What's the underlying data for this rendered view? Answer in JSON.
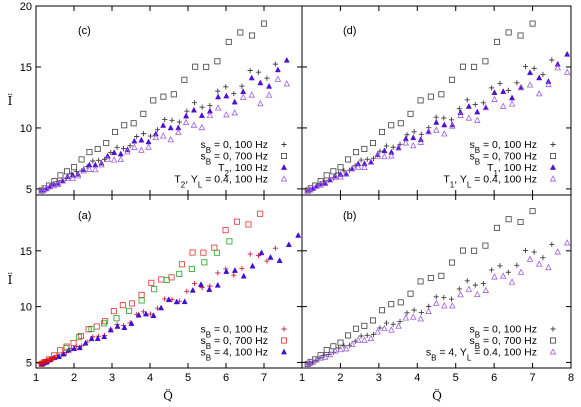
{
  "figure": {
    "x_axis_label": "Q̈",
    "y_axis_label": "Ï",
    "x_ticks": [
      1,
      2,
      3,
      4,
      5,
      6,
      7,
      8
    ]
  },
  "chart_data": [
    {
      "panel": "c",
      "type": "scatter",
      "xlim": [
        1,
        8
      ],
      "ylim": [
        4.5,
        20
      ],
      "y_ticks": [
        5,
        10,
        15,
        20
      ],
      "legend_placement": "bottom-right",
      "series": [
        {
          "name": "s_B = 0, 100 Hz",
          "marker": "plus",
          "color": "#404040",
          "slope": 1.68,
          "x_max": 7.3
        },
        {
          "name": "s_B = 0, 700 Hz",
          "marker": "square",
          "color": "#404040",
          "slope": 2.4,
          "x_max": 7.0
        },
        {
          "name": "T_2, 100 Hz",
          "marker": "triangle-filled",
          "color": "#5010d0",
          "slope": 1.55,
          "x_max": 7.6
        },
        {
          "name": "T_2, Y_L = 0.4, 100 Hz",
          "marker": "triangle-open",
          "color": "#a060e0",
          "slope": 1.35,
          "x_max": 7.6
        }
      ]
    },
    {
      "panel": "d",
      "type": "scatter",
      "xlim": [
        1,
        8
      ],
      "ylim": [
        4.5,
        20
      ],
      "y_ticks": [
        5,
        10,
        15,
        20
      ],
      "legend_placement": "bottom-right",
      "series": [
        {
          "name": "s_B = 0, 100 Hz",
          "marker": "plus",
          "color": "#404040",
          "slope": 1.68,
          "x_max": 7.5
        },
        {
          "name": "s_B = 0, 700 Hz",
          "marker": "square",
          "color": "#404040",
          "slope": 2.4,
          "x_max": 7.0
        },
        {
          "name": "T_1, 100 Hz",
          "marker": "triangle-filled",
          "color": "#5010d0",
          "slope": 1.55,
          "x_max": 7.9
        },
        {
          "name": "T_1, Y_L = 0.4, 100 Hz",
          "marker": "triangle-open",
          "color": "#a060e0",
          "slope": 1.43,
          "x_max": 7.9
        }
      ]
    },
    {
      "panel": "a",
      "type": "scatter",
      "xlim": [
        1,
        8
      ],
      "ylim": [
        4.5,
        20
      ],
      "y_ticks": [
        5,
        10,
        15
      ],
      "legend_placement": "bottom-right",
      "series": [
        {
          "name": "s_B = 0, 100 Hz",
          "marker": "plus",
          "color": "#d02040",
          "slope": 1.68,
          "x_max": 7.3
        },
        {
          "name": "s_B = 0, 700 Hz",
          "marker": "square",
          "color": "#e03030",
          "slope": 2.4,
          "x_max": 6.9
        },
        {
          "name": "s_B = 4, 100 Hz",
          "marker": "triangle-filled",
          "color": "#4010d0",
          "slope": 1.6,
          "x_max": 7.9
        }
      ],
      "extra_points_note": "green squares overlaid near red squares",
      "extra_color": "#20a020"
    },
    {
      "panel": "b",
      "type": "scatter",
      "xlim": [
        1,
        8
      ],
      "ylim": [
        4.5,
        20
      ],
      "y_ticks": [
        5,
        10,
        15
      ],
      "legend_placement": "bottom-right",
      "series": [
        {
          "name": "s_B = 0, 100 Hz",
          "marker": "plus",
          "color": "#404040",
          "slope": 1.68,
          "x_max": 7.5
        },
        {
          "name": "s_B = 0, 700 Hz",
          "marker": "square",
          "color": "#404040",
          "slope": 2.4,
          "x_max": 7.0
        },
        {
          "name": "s_B = 4, Y_L = 0.4, 100 Hz",
          "marker": "triangle-open",
          "color": "#a060e0",
          "slope": 1.5,
          "x_max": 7.9
        }
      ]
    }
  ]
}
